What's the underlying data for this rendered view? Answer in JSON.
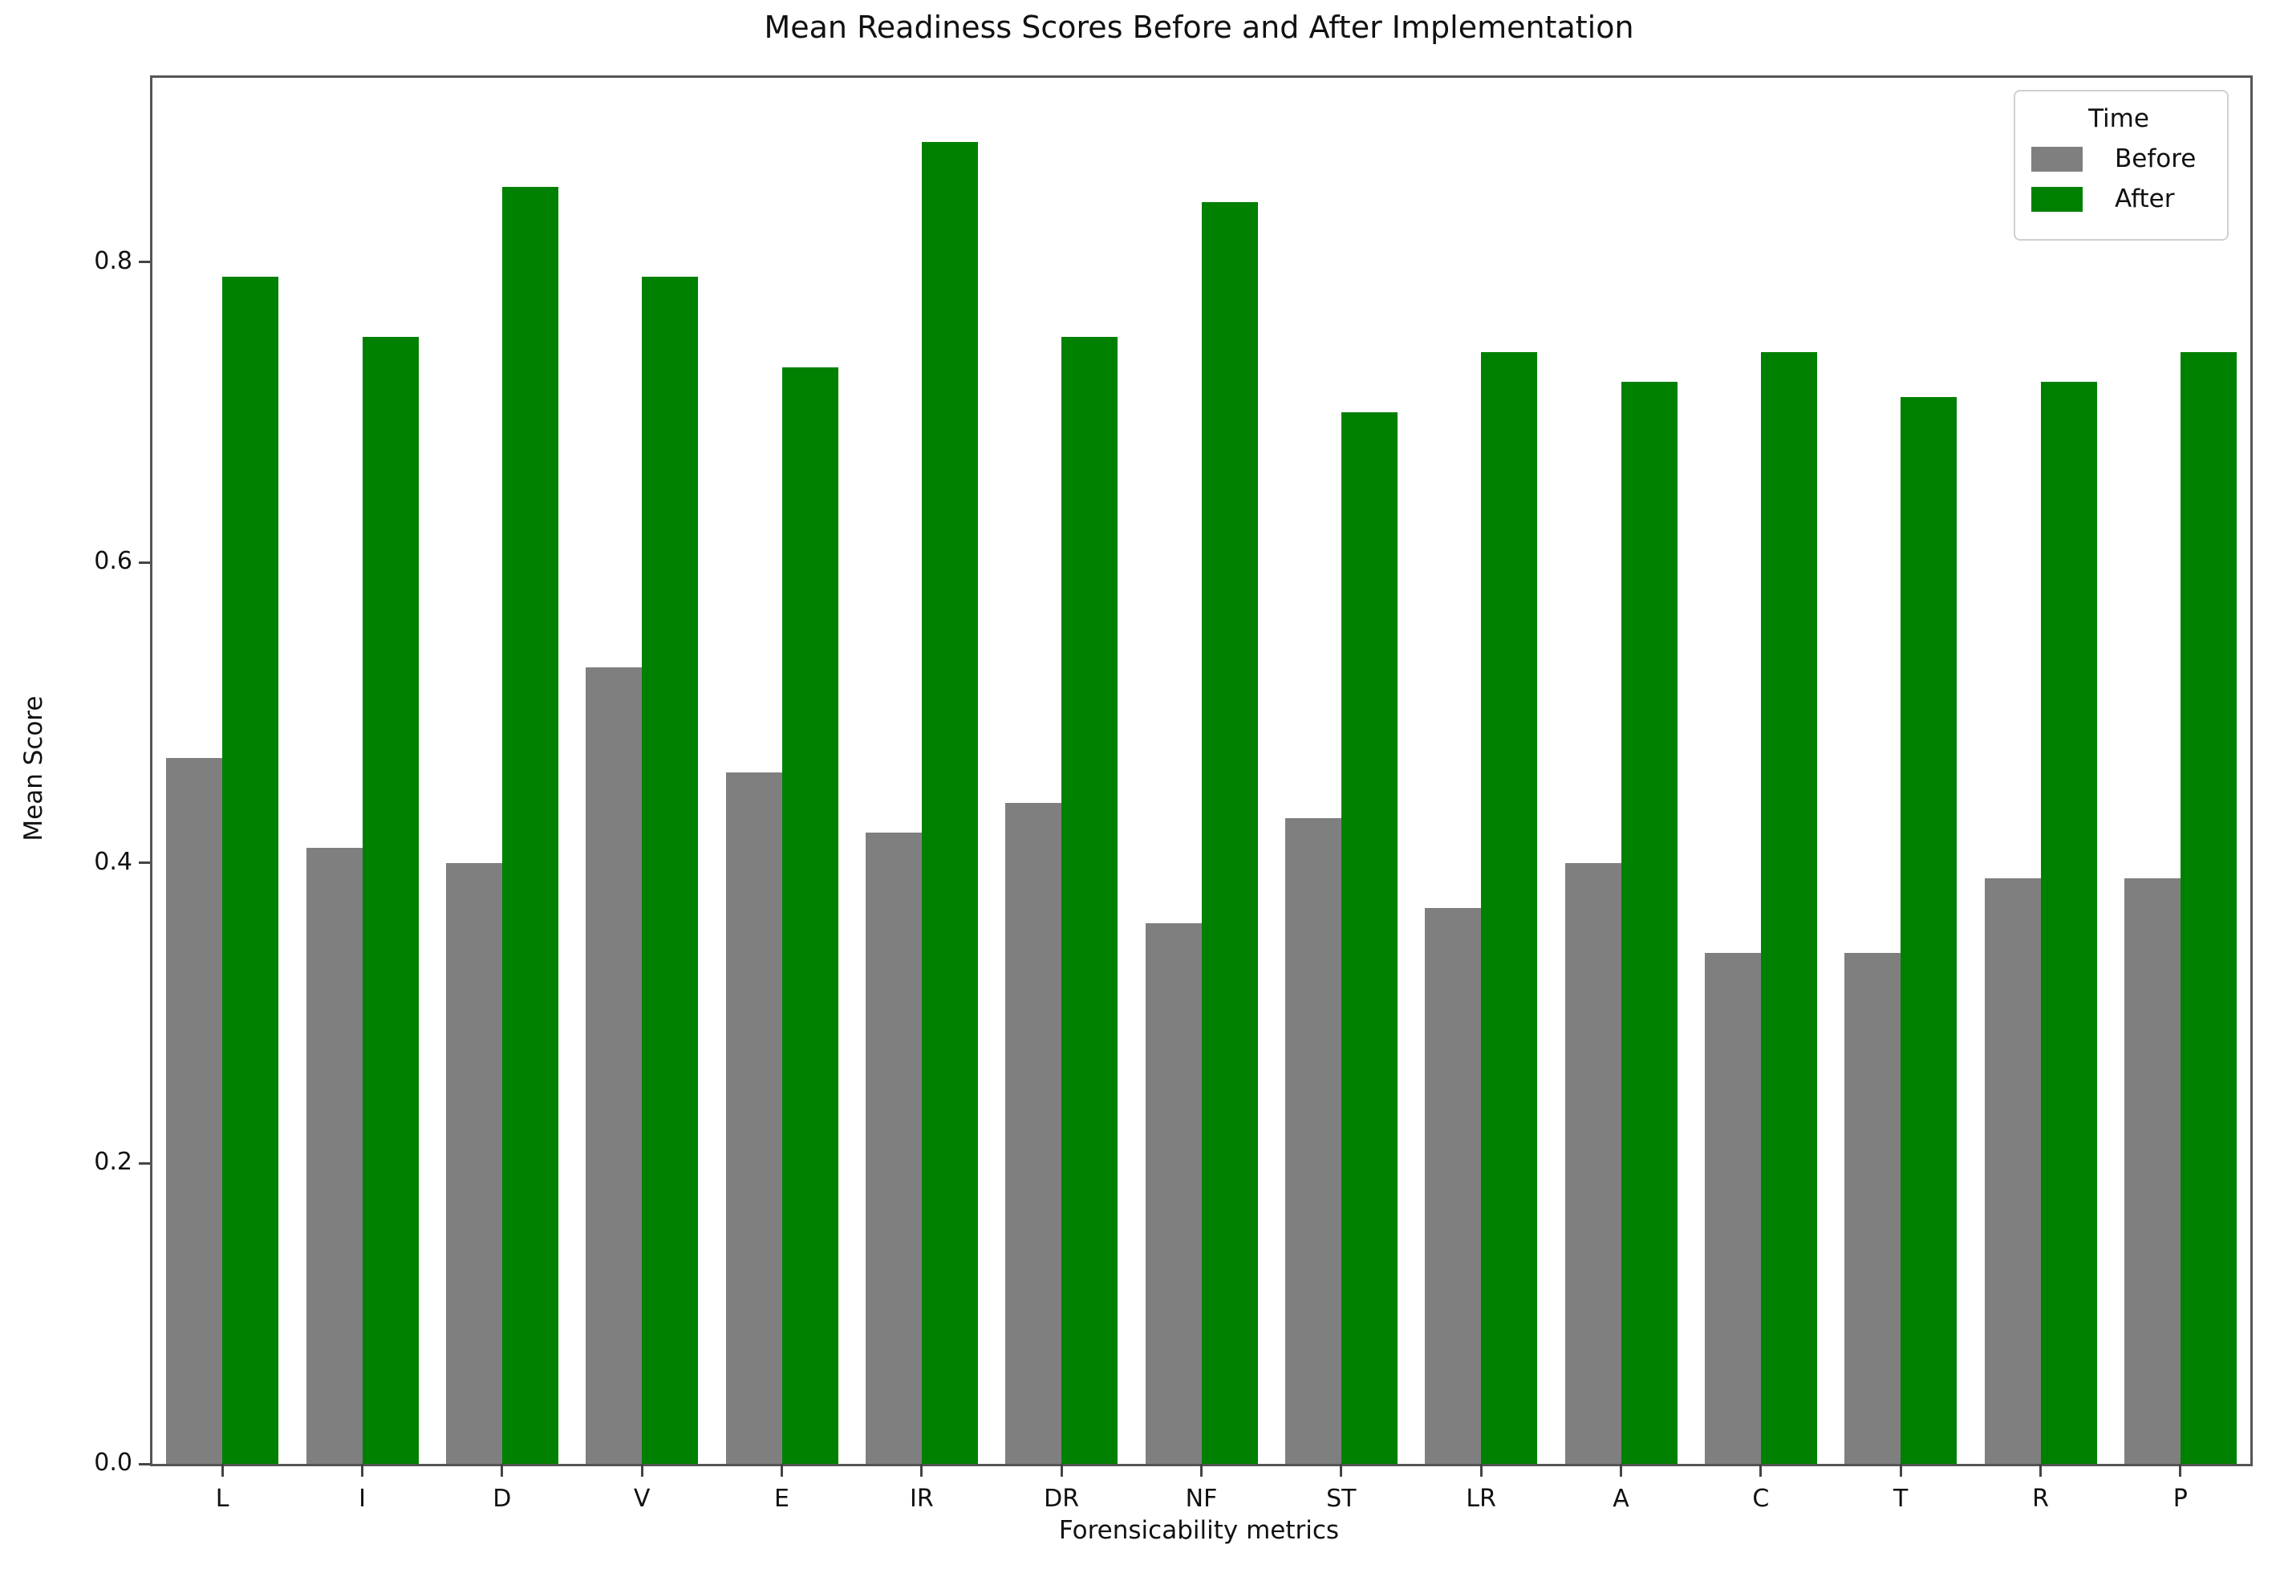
{
  "chart_data": {
    "type": "bar",
    "title": "Mean Readiness Scores Before and After Implementation",
    "xlabel": "Forensicability metrics",
    "ylabel": "Mean Score",
    "categories": [
      "L",
      "I",
      "D",
      "V",
      "E",
      "IR",
      "DR",
      "NF",
      "ST",
      "LR",
      "A",
      "C",
      "T",
      "R",
      "P"
    ],
    "series": [
      {
        "name": "Before",
        "color": "#7f7f7f",
        "values": [
          0.47,
          0.41,
          0.4,
          0.53,
          0.46,
          0.42,
          0.44,
          0.36,
          0.43,
          0.37,
          0.4,
          0.34,
          0.34,
          0.39,
          0.39
        ]
      },
      {
        "name": "After",
        "color": "#008000",
        "values": [
          0.79,
          0.75,
          0.85,
          0.79,
          0.73,
          0.88,
          0.75,
          0.84,
          0.7,
          0.74,
          0.72,
          0.74,
          0.71,
          0.72,
          0.74
        ]
      }
    ],
    "ylim": [
      0,
      0.9226
    ],
    "yticks": {
      "labels": [
        "0.0",
        "0.2",
        "0.4",
        "0.6",
        "0.8"
      ],
      "values": [
        0.0,
        0.2,
        0.4,
        0.6,
        0.8
      ]
    },
    "legend": {
      "title": "Time",
      "entries": [
        "Before",
        "After"
      ],
      "position": "upper right"
    },
    "grid": false
  }
}
